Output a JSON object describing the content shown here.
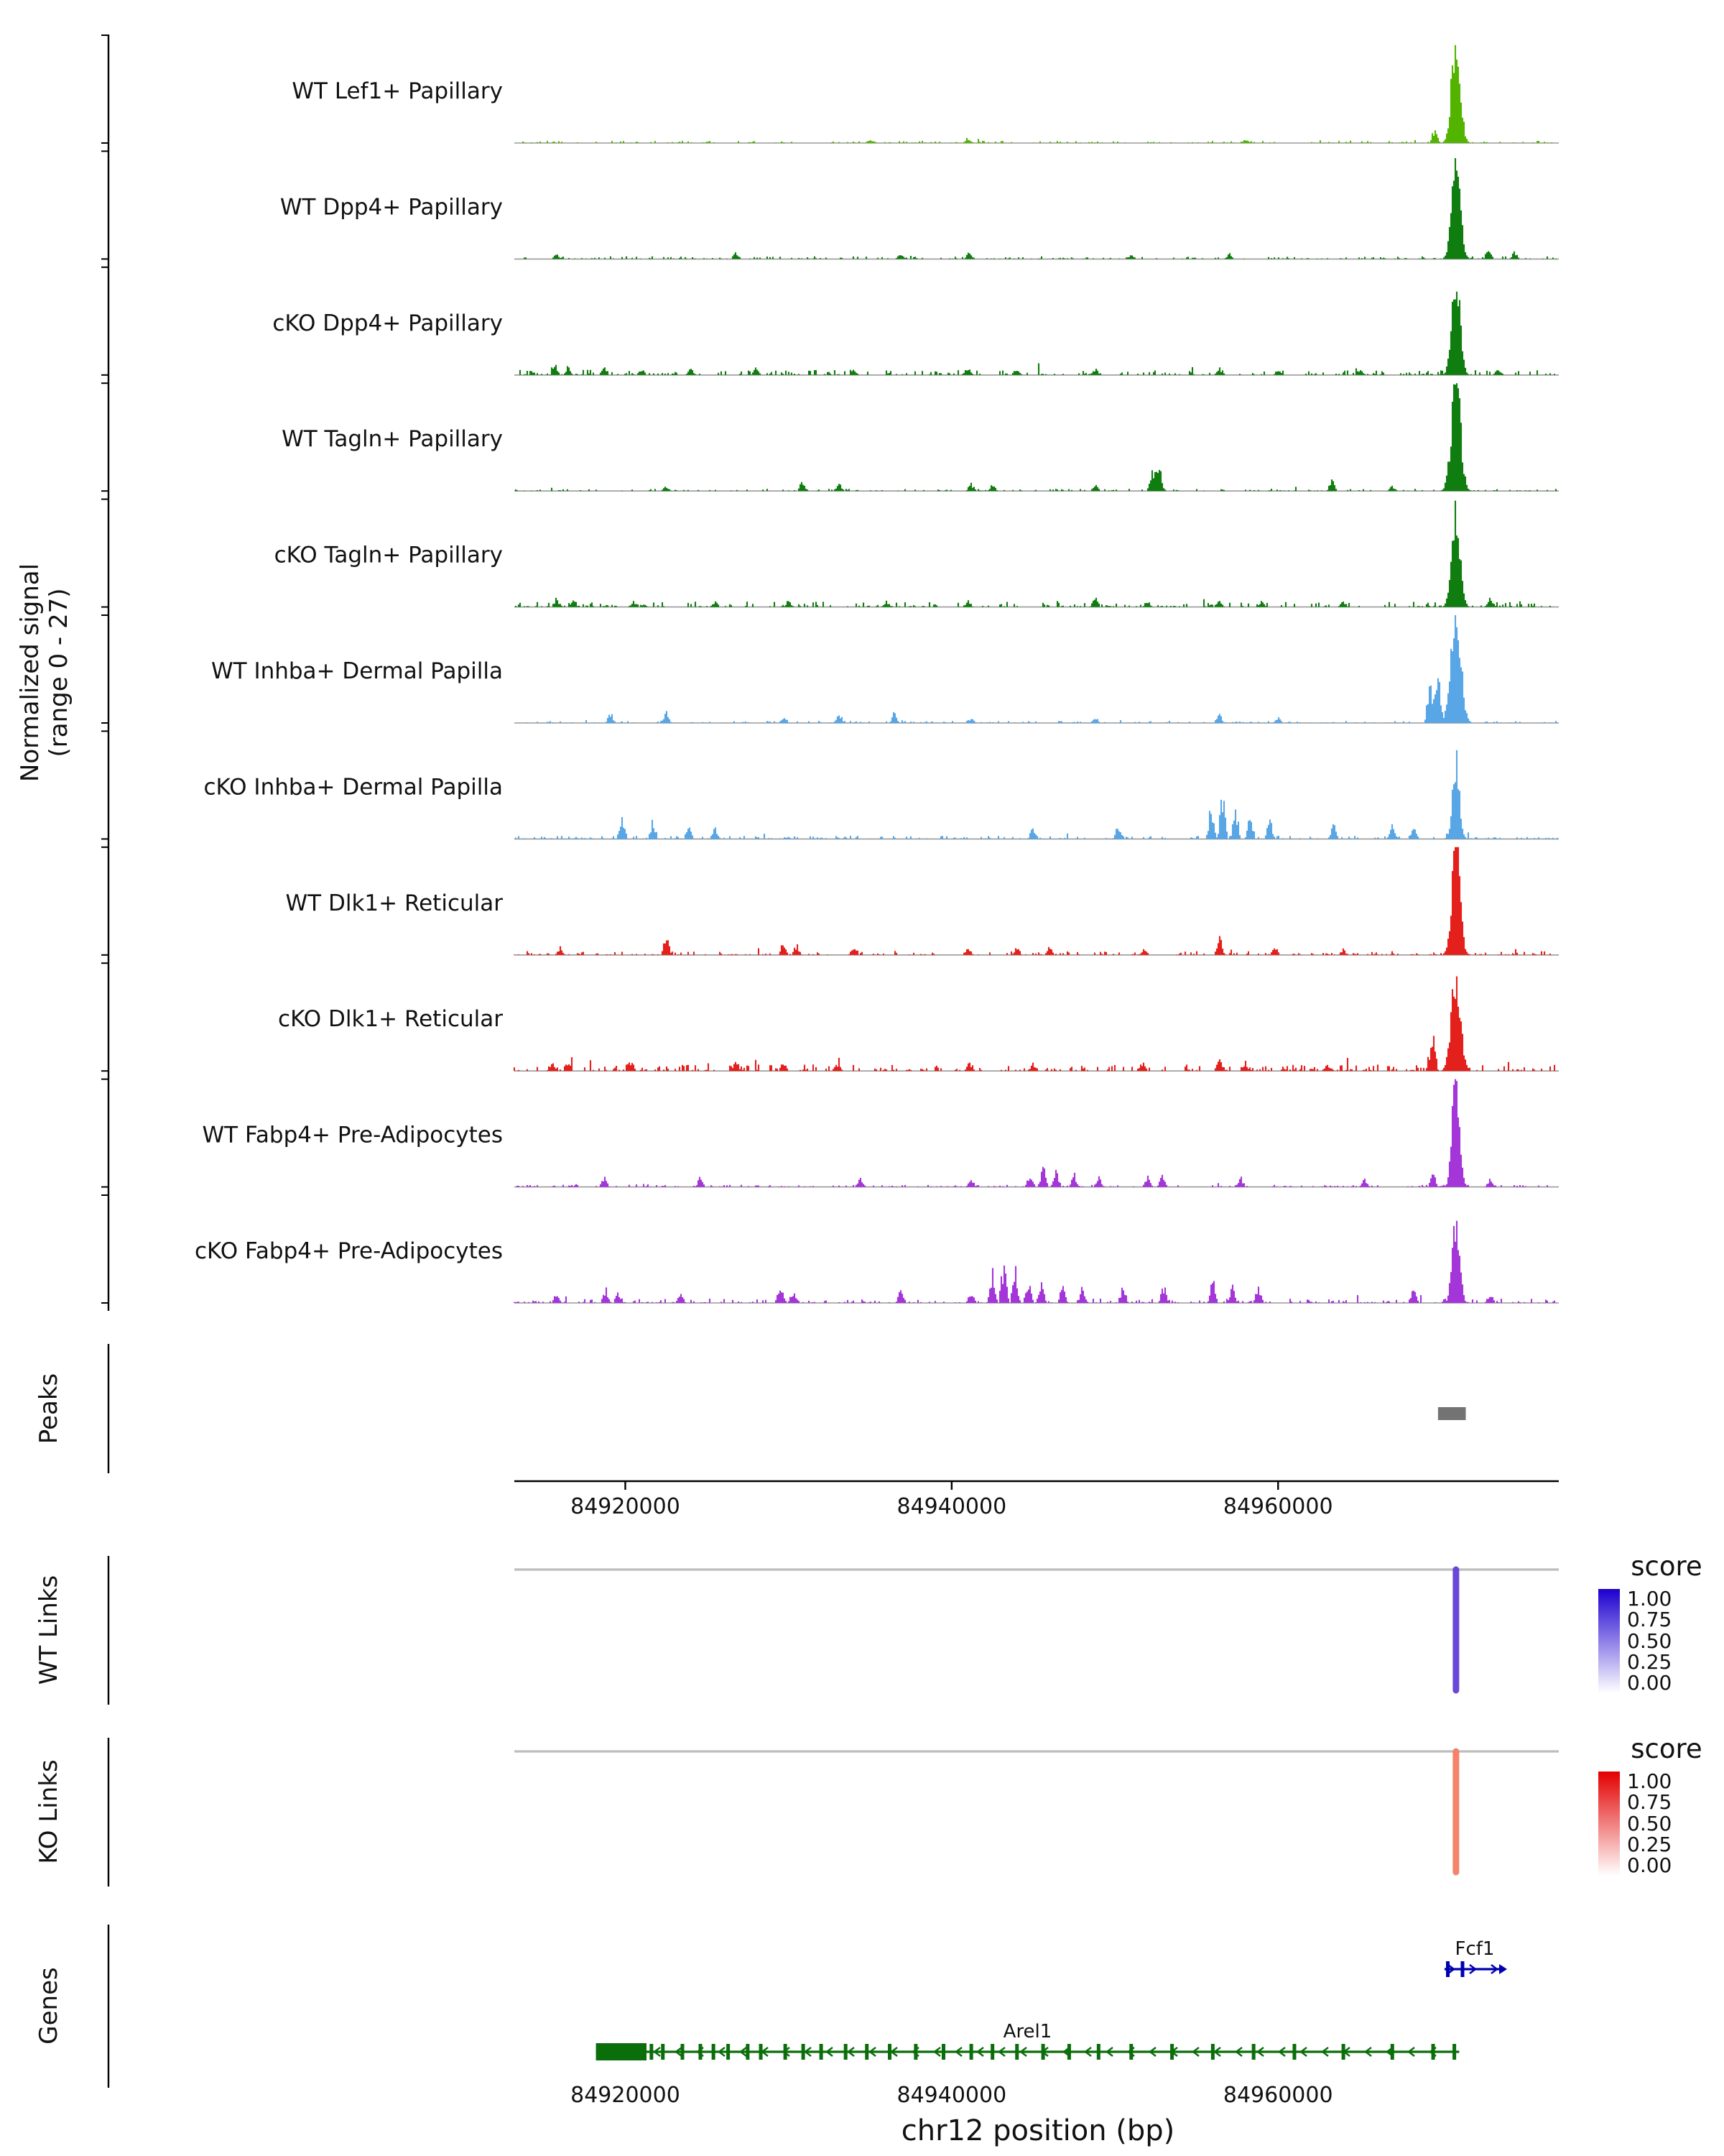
{
  "figure": {
    "ylabel_line1": "Normalized signal",
    "ylabel_line2": "(range 0 - 27)",
    "xlabel": "chr12 position (bp)",
    "sections": {
      "peaks": "Peaks",
      "wt_links": "WT Links",
      "ko_links": "KO Links",
      "genes": "Genes"
    },
    "score_legend_title": "score",
    "score_ticks": [
      "1.00",
      "0.75",
      "0.50",
      "0.25",
      "0.00"
    ]
  },
  "chart_data": {
    "type": "area",
    "title": "",
    "xlabel": "chr12 position (bp)",
    "ylabel": "Normalized signal (range 0 - 27)",
    "signal_range": [
      0,
      27
    ],
    "genome": {
      "chrom": "chr12",
      "x_domain": [
        84913200,
        84977200
      ],
      "x_ticks": [
        84920000,
        84940000,
        84960000
      ]
    },
    "tracks": [
      {
        "label": "WT Lef1+ Papillary",
        "color": "#53B400",
        "seed": 11,
        "noise": 0.02,
        "spikes": [
          [
            84935000,
            0.04
          ],
          [
            84941000,
            0.05
          ],
          [
            84958000,
            0.04
          ],
          [
            84969600,
            0.15
          ]
        ],
        "peak": {
          "center": 84970900,
          "h": 1.0,
          "sigma": 260
        }
      },
      {
        "label": "WT Dpp4+ Papillary",
        "color": "#0F7D0F",
        "seed": 22,
        "noise": 0.025,
        "spikes": [
          [
            84915800,
            0.05
          ],
          [
            84926800,
            0.07
          ],
          [
            84936900,
            0.06
          ],
          [
            84941100,
            0.07
          ],
          [
            84951000,
            0.04
          ],
          [
            84957000,
            0.05
          ],
          [
            84972900,
            0.1
          ],
          [
            84974500,
            0.07
          ]
        ],
        "peak": {
          "center": 84970900,
          "h": 0.95,
          "sigma": 250
        }
      },
      {
        "label": "cKO Dpp4+ Papillary",
        "color": "#0F7D0F",
        "seed": 33,
        "noise": 0.05,
        "spikes": [
          [
            84915700,
            0.1
          ],
          [
            84916500,
            0.08
          ],
          [
            84918700,
            0.07
          ],
          [
            84921000,
            0.06
          ],
          [
            84924000,
            0.06
          ],
          [
            84928000,
            0.07
          ],
          [
            84934000,
            0.05
          ],
          [
            84941000,
            0.08
          ],
          [
            84944000,
            0.07
          ],
          [
            84948800,
            0.06
          ],
          [
            84956400,
            0.07
          ],
          [
            84960000,
            0.05
          ],
          [
            84965000,
            0.05
          ],
          [
            84973500,
            0.07
          ]
        ],
        "peak": {
          "center": 84970900,
          "h": 0.9,
          "sigma": 250
        }
      },
      {
        "label": "WT Tagln+ Papillary",
        "color": "#0F7D0F",
        "seed": 44,
        "noise": 0.02,
        "spikes": [
          [
            84922500,
            0.05
          ],
          [
            84930850,
            0.1
          ],
          [
            84933100,
            0.08
          ],
          [
            84941200,
            0.07
          ],
          [
            84942500,
            0.06
          ],
          [
            84948800,
            0.06
          ],
          [
            84952300,
            0.2
          ],
          [
            84952700,
            0.32
          ],
          [
            84963300,
            0.1
          ],
          [
            84967000,
            0.05
          ]
        ],
        "peak": {
          "center": 84970900,
          "h": 1.0,
          "sigma": 280
        }
      },
      {
        "label": "cKO Tagln+ Papillary",
        "color": "#0F7D0F",
        "seed": 55,
        "noise": 0.05,
        "spikes": [
          [
            84915800,
            0.08
          ],
          [
            84916800,
            0.07
          ],
          [
            84920500,
            0.06
          ],
          [
            84925500,
            0.06
          ],
          [
            84930000,
            0.06
          ],
          [
            84936000,
            0.05
          ],
          [
            84941000,
            0.06
          ],
          [
            84948800,
            0.09
          ],
          [
            84952000,
            0.06
          ],
          [
            84956400,
            0.07
          ],
          [
            84959000,
            0.05
          ],
          [
            84964000,
            0.05
          ],
          [
            84973000,
            0.1
          ]
        ],
        "peak": {
          "center": 84970900,
          "h": 0.88,
          "sigma": 250
        }
      },
      {
        "label": "WT Inhba+ Dermal Papilla",
        "color": "#58A6E6",
        "seed": 66,
        "noise": 0.02,
        "spikes": [
          [
            84919100,
            0.09
          ],
          [
            84922500,
            0.11
          ],
          [
            84929700,
            0.07
          ],
          [
            84933100,
            0.1
          ],
          [
            84936500,
            0.1
          ],
          [
            84941200,
            0.05
          ],
          [
            84948800,
            0.07
          ],
          [
            84956400,
            0.09
          ],
          [
            84960000,
            0.05
          ],
          [
            84969300,
            0.45
          ],
          [
            84969800,
            0.5
          ]
        ],
        "peak": {
          "center": 84970900,
          "h": 1.0,
          "sigma": 300
        }
      },
      {
        "label": "cKO Inhba+ Dermal Papilla",
        "color": "#58A6E6",
        "seed": 77,
        "noise": 0.03,
        "spikes": [
          [
            84919800,
            0.24
          ],
          [
            84921700,
            0.17
          ],
          [
            84923900,
            0.14
          ],
          [
            84925500,
            0.13
          ],
          [
            84945000,
            0.12
          ],
          [
            84950200,
            0.12
          ],
          [
            84955900,
            0.3
          ],
          [
            84956600,
            0.42
          ],
          [
            84957400,
            0.28
          ],
          [
            84958300,
            0.22
          ],
          [
            84959500,
            0.18
          ],
          [
            84963400,
            0.14
          ],
          [
            84967000,
            0.14
          ],
          [
            84968300,
            0.13
          ]
        ],
        "peak": {
          "center": 84970900,
          "h": 0.72,
          "sigma": 200
        }
      },
      {
        "label": "WT Dlk1+ Reticular",
        "color": "#E4201C",
        "seed": 88,
        "noise": 0.035,
        "spikes": [
          [
            84916000,
            0.07
          ],
          [
            84922500,
            0.21
          ],
          [
            84929700,
            0.13
          ],
          [
            84930500,
            0.1
          ],
          [
            84934000,
            0.07
          ],
          [
            84941000,
            0.08
          ],
          [
            84944000,
            0.07
          ],
          [
            84946000,
            0.07
          ],
          [
            84951800,
            0.07
          ],
          [
            84956400,
            0.19
          ],
          [
            84959800,
            0.08
          ],
          [
            84964000,
            0.05
          ]
        ],
        "peak": {
          "center": 84970900,
          "h": 1.0,
          "sigma": 250
        }
      },
      {
        "label": "cKO Dlk1+ Reticular",
        "color": "#E4201C",
        "seed": 99,
        "noise": 0.06,
        "spikes": [
          [
            84915500,
            0.09
          ],
          [
            84916500,
            0.1
          ],
          [
            84920300,
            0.1
          ],
          [
            84926800,
            0.09
          ],
          [
            84929700,
            0.09
          ],
          [
            84933000,
            0.07
          ],
          [
            84941100,
            0.08
          ],
          [
            84945000,
            0.07
          ],
          [
            84951700,
            0.09
          ],
          [
            84956400,
            0.13
          ],
          [
            84958000,
            0.08
          ],
          [
            84963000,
            0.06
          ],
          [
            84969500,
            0.3
          ]
        ],
        "peak": {
          "center": 84970900,
          "h": 0.85,
          "sigma": 280
        }
      },
      {
        "label": "WT Fabp4+ Pre-Adipocytes",
        "color": "#A435D8",
        "seed": 110,
        "noise": 0.02,
        "spikes": [
          [
            84918700,
            0.09
          ],
          [
            84924600,
            0.09
          ],
          [
            84934400,
            0.09
          ],
          [
            84941200,
            0.07
          ],
          [
            84944800,
            0.13
          ],
          [
            84945600,
            0.2
          ],
          [
            84946400,
            0.15
          ],
          [
            84947500,
            0.12
          ],
          [
            84949000,
            0.1
          ],
          [
            84952000,
            0.11
          ],
          [
            84952900,
            0.1
          ],
          [
            84957700,
            0.09
          ],
          [
            84965300,
            0.07
          ],
          [
            84969500,
            0.13
          ],
          [
            84973000,
            0.07
          ]
        ],
        "peak": {
          "center": 84970900,
          "h": 1.0,
          "sigma": 220
        }
      },
      {
        "label": "cKO Fabp4+ Pre-Adipocytes",
        "color": "#A435D8",
        "seed": 121,
        "noise": 0.04,
        "spikes": [
          [
            84915800,
            0.09
          ],
          [
            84918800,
            0.13
          ],
          [
            84919600,
            0.1
          ],
          [
            84923400,
            0.09
          ],
          [
            84929500,
            0.17
          ],
          [
            84930300,
            0.12
          ],
          [
            84936900,
            0.13
          ],
          [
            84941200,
            0.1
          ],
          [
            84942500,
            0.28
          ],
          [
            84943200,
            0.4
          ],
          [
            84943900,
            0.3
          ],
          [
            84944700,
            0.22
          ],
          [
            84945500,
            0.18
          ],
          [
            84946800,
            0.16
          ],
          [
            84948000,
            0.14
          ],
          [
            84950500,
            0.16
          ],
          [
            84953000,
            0.16
          ],
          [
            84956000,
            0.21
          ],
          [
            84957200,
            0.18
          ],
          [
            84958800,
            0.16
          ],
          [
            84968300,
            0.13
          ],
          [
            84973000,
            0.09
          ]
        ],
        "peak": {
          "center": 84970900,
          "h": 0.75,
          "sigma": 220
        }
      }
    ],
    "peaks": [
      {
        "start": 84969800,
        "end": 84971500,
        "color": "#737373"
      }
    ],
    "wt_links": [
      {
        "position": 84970900,
        "score": 0.85,
        "color": "#6A48D7"
      }
    ],
    "ko_links": [
      {
        "position": 84970900,
        "score": 0.55,
        "color": "#F4836B"
      }
    ],
    "legends": {
      "wt_top": "#1C00CE",
      "ko_top": "#E30000",
      "bottom": "#FFFFFF"
    },
    "genes": [
      {
        "name": "Fcf1",
        "strand": "+",
        "start": 84970200,
        "end": 84973900,
        "color": "#0000B0",
        "row": 1,
        "exons": [
          84970400,
          84971300
        ]
      },
      {
        "name": "Arel1",
        "strand": "-",
        "start": 84918200,
        "end": 84971100,
        "color": "#0A6E0A",
        "row": 2,
        "first_exon_end": 84921300,
        "exons": [
          84921600,
          84922300,
          84923500,
          84924600,
          84925400,
          84926300,
          84927500,
          84928300,
          84929800,
          84930900,
          84932000,
          84933500,
          84934800,
          84936200,
          84937800,
          84939500,
          84941200,
          84942500,
          84944000,
          84945600,
          84947200,
          84949000,
          84951000,
          84953500,
          84956000,
          84958500,
          84961000,
          84964000,
          84967000,
          84969500,
          84970800
        ]
      }
    ]
  }
}
